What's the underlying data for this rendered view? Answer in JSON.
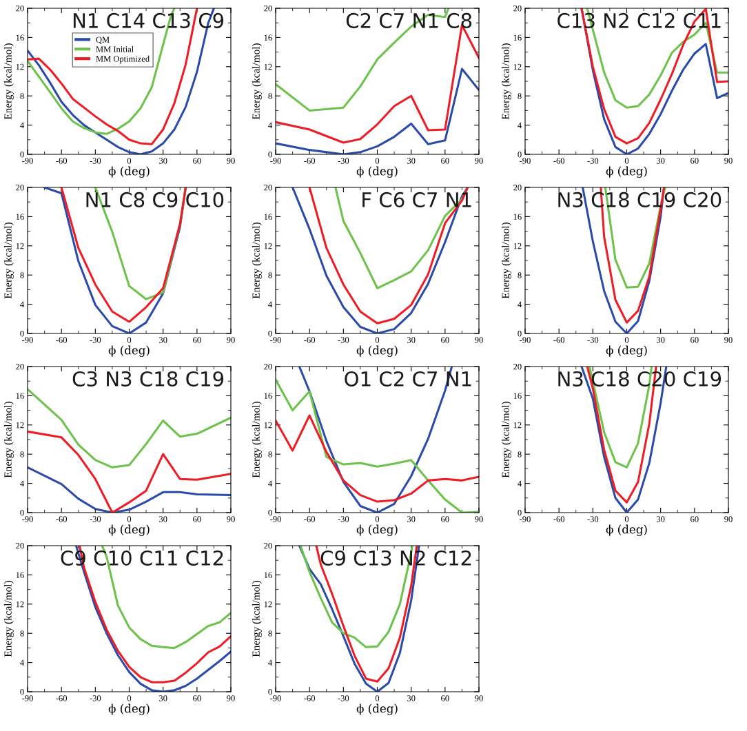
{
  "chart_data": [
    {
      "type": "line",
      "title": "N1 C14 C13 C9",
      "xlabel": "ϕ (deg)",
      "ylabel": "Energy (kcal/mol)",
      "xlim": [
        -90,
        90
      ],
      "ylim": [
        0,
        20
      ],
      "xticks": [
        -90,
        -60,
        -30,
        0,
        30,
        60,
        90
      ],
      "yticks": [
        0,
        4,
        8,
        12,
        16,
        20
      ],
      "grid": false,
      "legend": "top left",
      "series": [
        {
          "name": "QM",
          "color": "#2b4bab",
          "x": [
            -90,
            -80,
            -70,
            -60,
            -50,
            -40,
            -30,
            -20,
            -10,
            0,
            10,
            20,
            30,
            40,
            50,
            60,
            70,
            75
          ],
          "values": [
            14.2,
            12.2,
            9.8,
            7.2,
            5.4,
            4.0,
            3.0,
            2.0,
            1.0,
            0.3,
            0,
            0.4,
            1.5,
            3.4,
            6.5,
            11.3,
            18,
            20
          ]
        },
        {
          "name": "MM Initial",
          "color": "#6cc24a",
          "x": [
            -90,
            -70,
            -60,
            -50,
            -40,
            -30,
            -20,
            -10,
            0,
            10,
            20,
            30,
            37,
            40
          ],
          "values": [
            12.8,
            8.5,
            6.3,
            4.5,
            3.6,
            3.0,
            2.8,
            3.5,
            4.5,
            6.3,
            9.2,
            15,
            19,
            20
          ]
        },
        {
          "name": "MM Optimized",
          "color": "#ee1c25",
          "x": [
            -90,
            -80,
            -70,
            -60,
            -50,
            -40,
            -30,
            -20,
            -10,
            0,
            10,
            20,
            30,
            40,
            50,
            60
          ],
          "values": [
            13.0,
            13.1,
            11.6,
            9.7,
            7.6,
            6.4,
            5.2,
            4.1,
            3.2,
            2.0,
            1.5,
            1.4,
            3.4,
            7.0,
            12.3,
            20
          ]
        }
      ]
    },
    {
      "type": "line",
      "title": "C2 C7 N1 C8",
      "xlabel": "ϕ (deg)",
      "ylabel": "Energy (kcal/mol)",
      "xlim": [
        -90,
        90
      ],
      "ylim": [
        0,
        20
      ],
      "xticks": [
        -90,
        -60,
        -30,
        0,
        30,
        60,
        90
      ],
      "yticks": [
        0,
        4,
        8,
        12,
        16,
        20
      ],
      "grid": false,
      "series": [
        {
          "color": "#2b4bab",
          "x": [
            -90,
            -60,
            -30,
            -15,
            0,
            15,
            30,
            45,
            60,
            75,
            90
          ],
          "values": [
            1.5,
            0.6,
            0,
            0.3,
            1.1,
            2.4,
            4.2,
            1.4,
            1.9,
            11.7,
            8.8
          ]
        },
        {
          "color": "#6cc24a",
          "x": [
            -90,
            -60,
            -30,
            -15,
            0,
            15,
            30,
            45,
            60,
            63
          ],
          "values": [
            9.6,
            6.0,
            6.4,
            9.3,
            13.0,
            15.3,
            17.5,
            19.1,
            18.8,
            20
          ]
        },
        {
          "color": "#ee1c25",
          "x": [
            -90,
            -60,
            -30,
            -15,
            0,
            15,
            30,
            45,
            60,
            75,
            90
          ],
          "values": [
            4.4,
            3.4,
            1.6,
            2.1,
            4.1,
            6.6,
            8.0,
            3.3,
            3.4,
            17.7,
            13.2
          ]
        }
      ]
    },
    {
      "type": "line",
      "title": "C13 N2 C12 C11",
      "xlabel": "ϕ (deg)",
      "ylabel": "Energy (kcal/mol)",
      "xlim": [
        -90,
        90
      ],
      "ylim": [
        0,
        20
      ],
      "xticks": [
        -90,
        -60,
        -30,
        0,
        30,
        60,
        90
      ],
      "yticks": [
        0,
        4,
        8,
        12,
        16,
        20
      ],
      "grid": false,
      "series": [
        {
          "color": "#2b4bab",
          "x": [
            -40,
            -30,
            -20,
            -10,
            0,
            10,
            20,
            30,
            40,
            50,
            60,
            70,
            80,
            90
          ],
          "values": [
            20,
            11.5,
            4.8,
            1.0,
            0,
            0.8,
            2.8,
            5.5,
            8.7,
            11.6,
            13.8,
            15.1,
            7.7,
            8.4
          ]
        },
        {
          "color": "#6cc24a",
          "x": [
            -35,
            -20,
            -10,
            0,
            10,
            20,
            30,
            40,
            50,
            60,
            70,
            80,
            90
          ],
          "values": [
            20,
            11.2,
            7.4,
            6.4,
            6.6,
            8.2,
            10.8,
            13.9,
            15.4,
            16.4,
            18.0,
            11.2,
            11.2
          ]
        },
        {
          "color": "#ee1c25",
          "x": [
            -40,
            -30,
            -20,
            -10,
            0,
            10,
            20,
            30,
            40,
            50,
            60,
            70,
            80,
            90
          ],
          "values": [
            20,
            12,
            6.2,
            2.4,
            1.5,
            2.2,
            4.3,
            7.5,
            11.0,
            15.0,
            18.2,
            19.9,
            9.9,
            10.0
          ]
        }
      ]
    },
    {
      "type": "line",
      "title": "N1 C8 C9 C10",
      "xlabel": "ϕ (deg)",
      "ylabel": "Energy (kcal/mol)",
      "xlim": [
        -90,
        90
      ],
      "ylim": [
        0,
        20
      ],
      "xticks": [
        -90,
        -60,
        -30,
        0,
        30,
        60,
        90
      ],
      "yticks": [
        0,
        4,
        8,
        12,
        16,
        20
      ],
      "grid": false,
      "series": [
        {
          "color": "#2b4bab",
          "x": [
            -75,
            -60,
            -45,
            -30,
            -15,
            0,
            15,
            30,
            45,
            50
          ],
          "values": [
            20,
            19.2,
            9.9,
            3.9,
            1.0,
            0,
            1.5,
            5.5,
            14.6,
            20
          ]
        },
        {
          "color": "#6cc24a",
          "x": [
            -30,
            -15,
            0,
            15,
            30,
            45,
            50
          ],
          "values": [
            20,
            13.9,
            6.5,
            4.7,
            5.6,
            15.0,
            20
          ]
        },
        {
          "color": "#ee1c25",
          "x": [
            -60,
            -45,
            -30,
            -15,
            0,
            15,
            30,
            45,
            50
          ],
          "values": [
            20,
            11.7,
            6.7,
            3.0,
            1.6,
            3.6,
            6.2,
            15.0,
            20
          ]
        }
      ]
    },
    {
      "type": "line",
      "title": "F C6 C7 N1",
      "xlabel": "ϕ (deg)",
      "ylabel": "Energy (kcal/mol)",
      "xlim": [
        -90,
        90
      ],
      "ylim": [
        0,
        20
      ],
      "xticks": [
        -90,
        -60,
        -30,
        0,
        30,
        60,
        90
      ],
      "yticks": [
        0,
        4,
        8,
        12,
        16,
        20
      ],
      "grid": false,
      "series": [
        {
          "color": "#2b4bab",
          "x": [
            -75,
            -60,
            -45,
            -30,
            -15,
            0,
            15,
            30,
            45,
            60,
            75,
            80
          ],
          "values": [
            20,
            14.3,
            7.9,
            3.6,
            0.9,
            0,
            0.6,
            2.8,
            6.8,
            12.5,
            18.8,
            20
          ]
        },
        {
          "color": "#6cc24a",
          "x": [
            -37,
            -30,
            -15,
            0,
            15,
            30,
            45,
            60,
            75,
            80
          ],
          "values": [
            20,
            15.4,
            11.0,
            6.2,
            7.3,
            8.5,
            11.4,
            16.1,
            18.4,
            20
          ]
        },
        {
          "color": "#ee1c25",
          "x": [
            -60,
            -45,
            -30,
            -15,
            0,
            15,
            30,
            45,
            60,
            75,
            80
          ],
          "values": [
            20,
            11.7,
            6.7,
            3.0,
            1.4,
            2.0,
            3.9,
            8.1,
            15.1,
            18.2,
            20
          ]
        }
      ]
    },
    {
      "type": "line",
      "title": "N3 C18 C19 C20",
      "xlabel": "ϕ (deg)",
      "ylabel": "Energy (kcal/mol)",
      "xlim": [
        -90,
        90
      ],
      "ylim": [
        0,
        20
      ],
      "xticks": [
        -90,
        -60,
        -30,
        0,
        30,
        60,
        90
      ],
      "yticks": [
        0,
        4,
        8,
        12,
        16,
        20
      ],
      "grid": false,
      "series": [
        {
          "color": "#2b4bab",
          "x": [
            -39,
            -30,
            -20,
            -10,
            0,
            10,
            20,
            30,
            33
          ],
          "values": [
            20,
            12.6,
            5.8,
            1.6,
            0,
            1.7,
            7.2,
            16,
            20
          ]
        },
        {
          "color": "#6cc24a",
          "x": [
            -19,
            -10,
            0,
            10,
            20,
            30,
            34
          ],
          "values": [
            20,
            10.1,
            6.3,
            6.4,
            9.6,
            17.5,
            20
          ]
        },
        {
          "color": "#ee1c25",
          "x": [
            -23,
            -20,
            -10,
            0,
            10,
            20,
            30,
            33
          ],
          "values": [
            20,
            13.2,
            4.6,
            1.5,
            3.1,
            7.8,
            17,
            20
          ]
        }
      ]
    },
    {
      "type": "line",
      "title": "C3 N3 C18 C19",
      "xlabel": "ϕ (deg)",
      "ylabel": "Energy (kcal/mol)",
      "xlim": [
        -90,
        90
      ],
      "ylim": [
        0,
        20
      ],
      "xticks": [
        -90,
        -60,
        -30,
        0,
        30,
        60,
        90
      ],
      "yticks": [
        0,
        4,
        8,
        12,
        16,
        20
      ],
      "grid": false,
      "series": [
        {
          "color": "#2b4bab",
          "x": [
            -90,
            -60,
            -45,
            -30,
            -15,
            0,
            15,
            30,
            45,
            60,
            90
          ],
          "values": [
            6.2,
            3.9,
            1.9,
            0.5,
            0,
            0.4,
            1.5,
            2.8,
            2.8,
            2.5,
            2.4
          ]
        },
        {
          "color": "#6cc24a",
          "x": [
            -90,
            -60,
            -45,
            -30,
            -15,
            0,
            15,
            30,
            45,
            60,
            90
          ],
          "values": [
            16.9,
            12.7,
            9.3,
            7.2,
            6.2,
            6.5,
            9.4,
            12.6,
            10.4,
            10.8,
            13.0
          ]
        },
        {
          "color": "#ee1c25",
          "x": [
            -90,
            -60,
            -45,
            -30,
            -15,
            0,
            15,
            30,
            45,
            60,
            90
          ],
          "values": [
            11.1,
            10.3,
            7.9,
            4.6,
            0,
            1.4,
            3.0,
            8.0,
            4.6,
            4.5,
            5.3
          ]
        }
      ]
    },
    {
      "type": "line",
      "title": "O1 C2 C7 N1",
      "xlabel": "ϕ (deg)",
      "ylabel": "Energy (kcal/mol)",
      "xlim": [
        -90,
        90
      ],
      "ylim": [
        0,
        20
      ],
      "xticks": [
        -90,
        -60,
        -30,
        0,
        30,
        60,
        90
      ],
      "yticks": [
        0,
        4,
        8,
        12,
        16,
        20
      ],
      "grid": false,
      "series": [
        {
          "color": "#2b4bab",
          "x": [
            -69,
            -60,
            -45,
            -30,
            -15,
            0,
            15,
            30,
            45,
            60,
            66
          ],
          "values": [
            20,
            16.6,
            9.8,
            4.2,
            0.9,
            0,
            1.2,
            5.0,
            10.1,
            16.7,
            20
          ]
        },
        {
          "color": "#6cc24a",
          "x": [
            -90,
            -75,
            -60,
            -45,
            -30,
            -15,
            0,
            15,
            30,
            45,
            60,
            75,
            90
          ],
          "values": [
            18.2,
            14.0,
            16.6,
            7.6,
            6.6,
            6.8,
            6.3,
            6.7,
            7.2,
            4.4,
            1.8,
            0,
            0.1
          ]
        },
        {
          "color": "#ee1c25",
          "x": [
            -90,
            -75,
            -60,
            -45,
            -30,
            -15,
            0,
            15,
            30,
            45,
            60,
            75,
            90
          ],
          "values": [
            12.6,
            8.5,
            13.3,
            8.3,
            4.4,
            2.4,
            1.5,
            1.7,
            2.6,
            4.4,
            4.6,
            4.4,
            4.9
          ]
        }
      ]
    },
    {
      "type": "line",
      "title": "N3 C18 C20 C19",
      "xlabel": "ϕ (deg)",
      "ylabel": "Energy (kcal/mol)",
      "xlim": [
        -90,
        90
      ],
      "ylim": [
        0,
        20
      ],
      "xticks": [
        -90,
        -60,
        -30,
        0,
        30,
        60,
        90
      ],
      "yticks": [
        0,
        4,
        8,
        12,
        16,
        20
      ],
      "grid": false,
      "series": [
        {
          "color": "#2b4bab",
          "x": [
            -40,
            -30,
            -20,
            -10,
            0,
            10,
            20,
            30,
            35
          ],
          "values": [
            20,
            15.6,
            7.6,
            2.0,
            0,
            1.8,
            6.8,
            15.0,
            20
          ]
        },
        {
          "color": "#6cc24a",
          "x": [
            -33,
            -20,
            -10,
            0,
            10,
            20,
            22
          ],
          "values": [
            20,
            11.0,
            6.9,
            6.2,
            9.5,
            17.5,
            20
          ]
        },
        {
          "color": "#ee1c25",
          "x": [
            -35,
            -30,
            -20,
            -10,
            0,
            10,
            20,
            26
          ],
          "values": [
            20,
            17,
            8.6,
            3.0,
            1.4,
            4.2,
            12.2,
            20
          ]
        }
      ]
    },
    {
      "type": "line",
      "title": "C9 C10 C11 C12",
      "xlabel": "ϕ (deg)",
      "ylabel": "Energy (kcal/mol)",
      "xlim": [
        -90,
        90
      ],
      "ylim": [
        0,
        20
      ],
      "xticks": [
        -90,
        -60,
        -30,
        0,
        30,
        60,
        90
      ],
      "yticks": [
        0,
        4,
        8,
        12,
        16,
        20
      ],
      "grid": false,
      "series": [
        {
          "color": "#2b4bab",
          "x": [
            -47,
            -40,
            -30,
            -20,
            -10,
            0,
            10,
            20,
            30,
            40,
            50,
            60,
            70,
            80,
            90
          ],
          "values": [
            20,
            16.4,
            11.6,
            8.0,
            5.0,
            2.7,
            1.1,
            0.2,
            0,
            0.2,
            0.8,
            1.8,
            3.0,
            4.2,
            5.5
          ]
        },
        {
          "color": "#6cc24a",
          "x": [
            -24,
            -20,
            -10,
            0,
            10,
            20,
            30,
            40,
            50,
            60,
            70,
            80,
            90
          ],
          "values": [
            20,
            18.5,
            11.8,
            8.8,
            7.2,
            6.3,
            6.1,
            6.0,
            6.8,
            7.9,
            9.0,
            9.5,
            10.8
          ]
        },
        {
          "color": "#ee1c25",
          "x": [
            -44,
            -40,
            -30,
            -20,
            -10,
            0,
            10,
            20,
            30,
            40,
            50,
            60,
            70,
            80,
            90
          ],
          "values": [
            20,
            17.0,
            12.3,
            8.5,
            5.6,
            3.4,
            2.0,
            1.3,
            1.3,
            1.5,
            2.6,
            3.9,
            5.4,
            6.2,
            7.6
          ]
        }
      ]
    },
    {
      "type": "line",
      "title": "C9 C13 N2 C12",
      "xlabel": "ϕ (deg)",
      "ylabel": "Energy (kcal/mol)",
      "xlim": [
        -90,
        90
      ],
      "ylim": [
        0,
        20
      ],
      "xticks": [
        -90,
        -60,
        -30,
        0,
        30,
        60,
        90
      ],
      "yticks": [
        0,
        4,
        8,
        12,
        16,
        20
      ],
      "grid": false,
      "series": [
        {
          "color": "#2b4bab",
          "x": [
            -69,
            -60,
            -50,
            -40,
            -30,
            -20,
            -10,
            0,
            10,
            20,
            30,
            37
          ],
          "values": [
            20,
            16.8,
            14.7,
            11.3,
            7.6,
            3.8,
            1.1,
            0,
            1.2,
            5.3,
            12.5,
            20
          ]
        },
        {
          "color": "#6cc24a",
          "x": [
            -68,
            -60,
            -50,
            -40,
            -30,
            -20,
            -10,
            0,
            10,
            20,
            30,
            31
          ],
          "values": [
            20,
            16.4,
            12.8,
            9.5,
            8.0,
            7.4,
            6.1,
            6.2,
            8.2,
            12.0,
            19.0,
            20
          ]
        },
        {
          "color": "#ee1c25",
          "x": [
            -54,
            -50,
            -40,
            -30,
            -20,
            -10,
            0,
            10,
            20,
            30,
            35
          ],
          "values": [
            20,
            17.4,
            13.4,
            9.0,
            4.9,
            1.8,
            1.4,
            3.2,
            7.4,
            14.5,
            20
          ]
        }
      ]
    }
  ]
}
